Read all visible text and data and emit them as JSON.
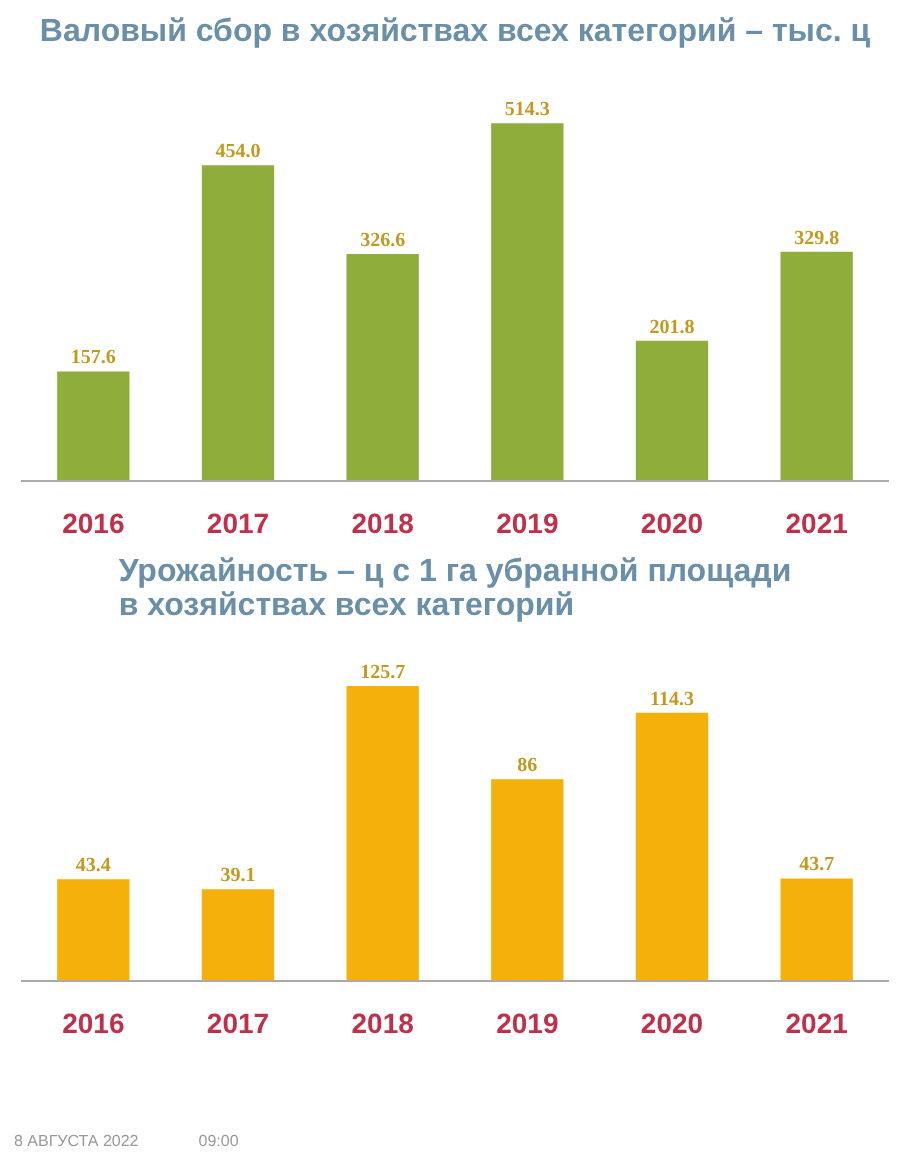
{
  "chart_data": [
    {
      "type": "bar",
      "title": "Валовый сбор в хозяйствах всех категорий – тыс. ц",
      "categories": [
        "2016",
        "2017",
        "2018",
        "2019",
        "2020",
        "2021"
      ],
      "values": [
        157.6,
        454.0,
        326.6,
        514.3,
        201.8,
        329.8
      ],
      "color": "#8fad3a",
      "value_labels": [
        "157.6",
        "454.0",
        "326.6",
        "514.3",
        "201.8",
        "329.8"
      ]
    },
    {
      "type": "bar",
      "title": "Урожайность – ц с 1 га убранной площади\nв хозяйствах всех категорий",
      "categories": [
        "2016",
        "2017",
        "2018",
        "2019",
        "2020",
        "2021"
      ],
      "values": [
        43.4,
        39.1,
        125.7,
        86,
        114.3,
        43.7
      ],
      "color": "#f5b10a",
      "value_labels": [
        "43.4",
        "39.1",
        "125.7",
        "86",
        "114.3",
        "43.7"
      ],
      "annotations": [
        "8 АВГУСТА 2022",
        "09:00"
      ]
    }
  ]
}
